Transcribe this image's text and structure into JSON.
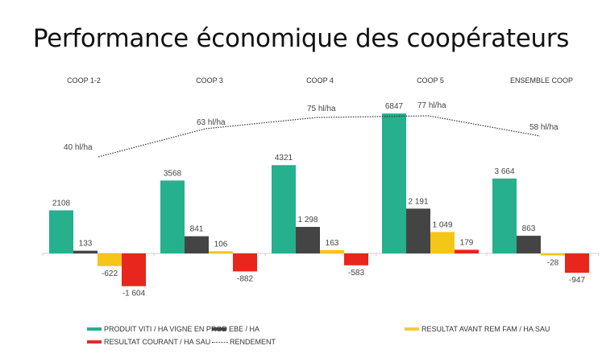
{
  "title": "Performance économique des coopérateurs",
  "groups": [
    "COOP 1-2",
    "COOP 3",
    "COOP 4",
    "COOP 5",
    "ENSEMBLE COOP"
  ],
  "colors": {
    "produit": "#26b08d",
    "ebe": "#444444",
    "resultat_avant": "#f5c518",
    "resultat_courant": "#e8261e",
    "rendement": "#333333"
  },
  "legend": {
    "produit": "PRODUIT VITI / HA VIGNE EN PROD",
    "ebe": "EBE / HA",
    "resultat_avant": "RESULTAT AVANT REM FAM / HA SAU",
    "resultat_courant": "RESULTAT COURANT / HA SAU",
    "rendement": "RENDEMENT"
  },
  "chart_data": {
    "type": "bar",
    "title": "Performance économique des coopérateurs",
    "categories": [
      "COOP 1-2",
      "COOP 3",
      "COOP 4",
      "COOP 5",
      "ENSEMBLE COOP"
    ],
    "series": [
      {
        "name": "PRODUIT VITI / HA VIGNE EN PROD",
        "values": [
          2108,
          3568,
          4321,
          6847,
          3664
        ],
        "labels": [
          "2108",
          "3568",
          "4321",
          "6847",
          "3 664"
        ]
      },
      {
        "name": "EBE / HA",
        "values": [
          133,
          841,
          1298,
          2191,
          863
        ],
        "labels": [
          "133",
          "841",
          "1 298",
          "2 191",
          "863"
        ]
      },
      {
        "name": "RESULTAT AVANT REM FAM / HA SAU",
        "values": [
          -622,
          106,
          163,
          1049,
          -28
        ],
        "labels": [
          "-622",
          "106",
          "163",
          "1 049",
          "-28"
        ]
      },
      {
        "name": "RESULTAT COURANT / HA SAU",
        "values": [
          -1604,
          -882,
          -583,
          179,
          -947
        ],
        "labels": [
          "-1 604",
          "-882",
          "-583",
          "179",
          "-947"
        ]
      },
      {
        "name": "RENDEMENT",
        "type": "line",
        "style": "dotted",
        "values": [
          40,
          63,
          75,
          77,
          58
        ],
        "labels": [
          "40 hl/ha",
          "63 hl/ha",
          "75 hl/ha",
          "77 hl/ha",
          "58 hl/ha"
        ]
      }
    ],
    "xlabel": "",
    "ylabel": "",
    "grid": false,
    "legend_position": "bottom"
  }
}
